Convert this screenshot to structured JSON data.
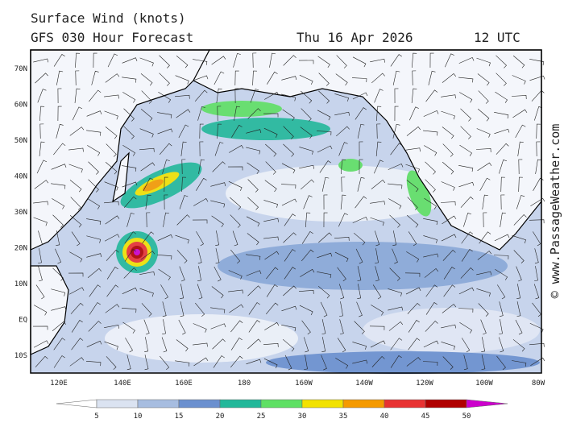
{
  "header": {
    "title": "Surface Wind (knots)",
    "model": "GFS 030 Hour Forecast",
    "date": "Thu 16 Apr 2026",
    "time": "12 UTC"
  },
  "map": {
    "lat_labels": [
      "70N",
      "60N",
      "50N",
      "40N",
      "30N",
      "20N",
      "10N",
      "EQ",
      "10S"
    ],
    "lon_labels": [
      "120E",
      "140E",
      "160E",
      "180",
      "160W",
      "140W",
      "120W",
      "100W",
      "80W"
    ]
  },
  "credit": "© www.PassageWeather.com",
  "colorbar": {
    "ticks": [
      5,
      10,
      15,
      20,
      25,
      30,
      35,
      40,
      45,
      50
    ],
    "colors": [
      "#ffffff",
      "#dbe3f1",
      "#a7bde0",
      "#6b90cf",
      "#22b89a",
      "#5fe064",
      "#f2e200",
      "#f59a00",
      "#e83232",
      "#b00000",
      "#cc00cc"
    ]
  }
}
